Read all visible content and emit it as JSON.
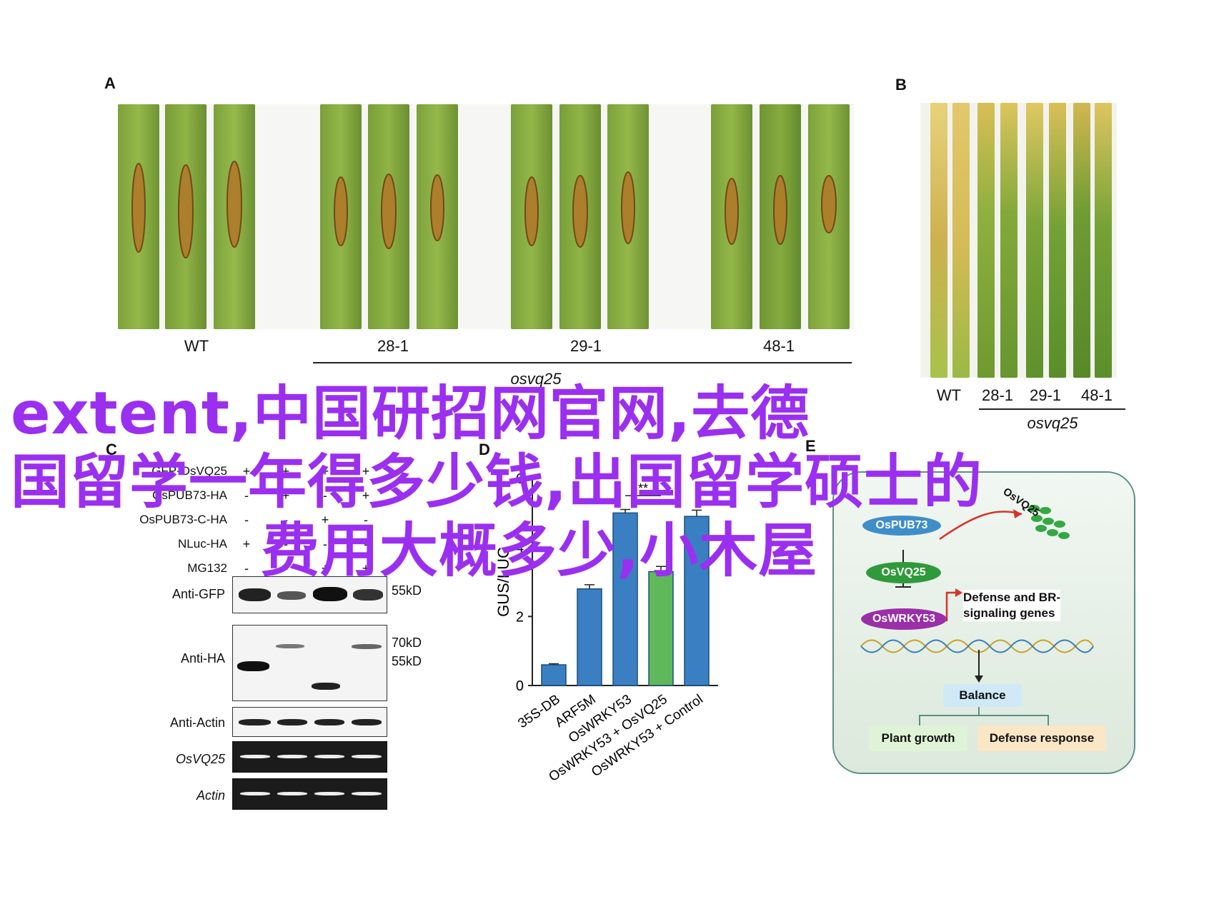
{
  "panels": {
    "a": {
      "letter": "A",
      "labels": [
        "WT",
        "28-1",
        "29-1",
        "48-1"
      ],
      "group_label": "osvq25"
    },
    "b": {
      "letter": "B",
      "labels": [
        "WT",
        "28-1",
        "29-1",
        "48-1"
      ],
      "group_label": "osvq25"
    },
    "c": {
      "letter": "C",
      "row_labels": [
        "GFP-OsVQ25",
        "OsPUB73-HA",
        "OsPUB73-C-HA",
        "NLuc-HA",
        "MG132"
      ],
      "marks": [
        [
          "+",
          "+",
          "+",
          "+"
        ],
        [
          "-",
          "+",
          "-",
          "+"
        ],
        [
          "-",
          "-",
          "+",
          "-"
        ],
        [
          "+",
          "-",
          "-",
          "-"
        ],
        [
          "-",
          "-",
          "+",
          "+"
        ]
      ],
      "blot_labels": [
        "Anti-GFP",
        "Anti-HA",
        "Anti-Actin",
        "OsVQ25",
        "Actin"
      ],
      "kd_labels": [
        "55kD",
        "70kD",
        "55kD"
      ]
    },
    "d": {
      "letter": "D",
      "ylabel": "GUS/LUC",
      "significance": "**"
    },
    "e": {
      "letter": "E",
      "nodes": {
        "pub73": "OsPUB73",
        "vq25_dots": "OsVQ25",
        "vq25": "OsVQ25",
        "wrky53": "OsWRKY53",
        "genes_line1": "Defense and BR-",
        "genes_line2": "signaling genes",
        "balance": "Balance",
        "growth": "Plant growth",
        "defense": "Defense response"
      },
      "colors": {
        "pub73": "#3f8ec9",
        "vq25": "#2f9a3a",
        "wrky53": "#9a2fa8",
        "balance": "#cfe9f7",
        "growth": "#dff3d6",
        "defense": "#fbe6c6"
      }
    }
  },
  "chart_data": {
    "type": "bar",
    "categories": [
      "35S-DB",
      "ARF5M",
      "OsWRKY53",
      "OsWRKY53 + OsVQ25",
      "OsWRKY53 + Control"
    ],
    "values": [
      0.6,
      2.8,
      5.0,
      3.3,
      4.9
    ],
    "errors": [
      0.03,
      0.12,
      0.1,
      0.15,
      0.18
    ],
    "colors": [
      "#3a7fc1",
      "#3a7fc1",
      "#3a7fc1",
      "#5fb85a",
      "#3a7fc1"
    ],
    "ylabel": "GUS/LUC",
    "ylim": [
      0,
      6
    ],
    "yticks": [
      0,
      2,
      4,
      6
    ],
    "annotation": "**",
    "grid": false
  },
  "watermark": {
    "line1": "extent,中国研招网官网,去德",
    "line2": "国留学一年得多少钱,出国留学硕士的",
    "line3": "费用大概多少,小木屋",
    "color": "#9b2ff0"
  }
}
